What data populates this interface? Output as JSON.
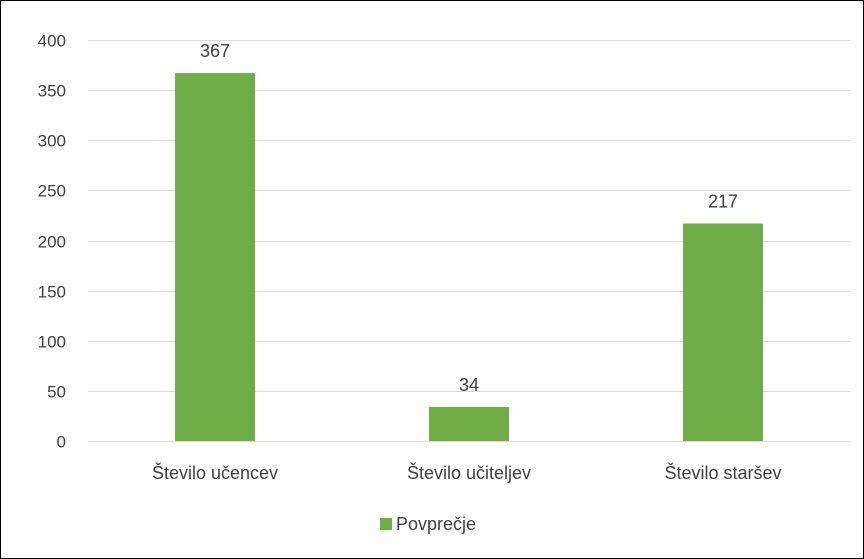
{
  "chart_data": {
    "type": "bar",
    "categories": [
      "Število učencev",
      "Število učiteljev",
      "Število staršev"
    ],
    "series": [
      {
        "name": "Povprečje",
        "values": [
          367,
          34,
          217
        ],
        "color": "#70ad47"
      }
    ],
    "data_labels": [
      "367",
      "34",
      "217"
    ],
    "ylim": [
      0,
      400
    ],
    "yticks": [
      0,
      50,
      100,
      150,
      200,
      250,
      300,
      350,
      400
    ],
    "ytick_labels": [
      "0",
      "50",
      "100",
      "150",
      "200",
      "250",
      "300",
      "350",
      "400"
    ],
    "grid": true,
    "legend": "bottom",
    "title": "",
    "xlabel": "",
    "ylabel": ""
  },
  "legend": {
    "label": "Povprečje",
    "color": "#70ad47"
  },
  "colors": {
    "gridline": "#d9d9d9",
    "text": "#404040",
    "border": "#000000"
  }
}
